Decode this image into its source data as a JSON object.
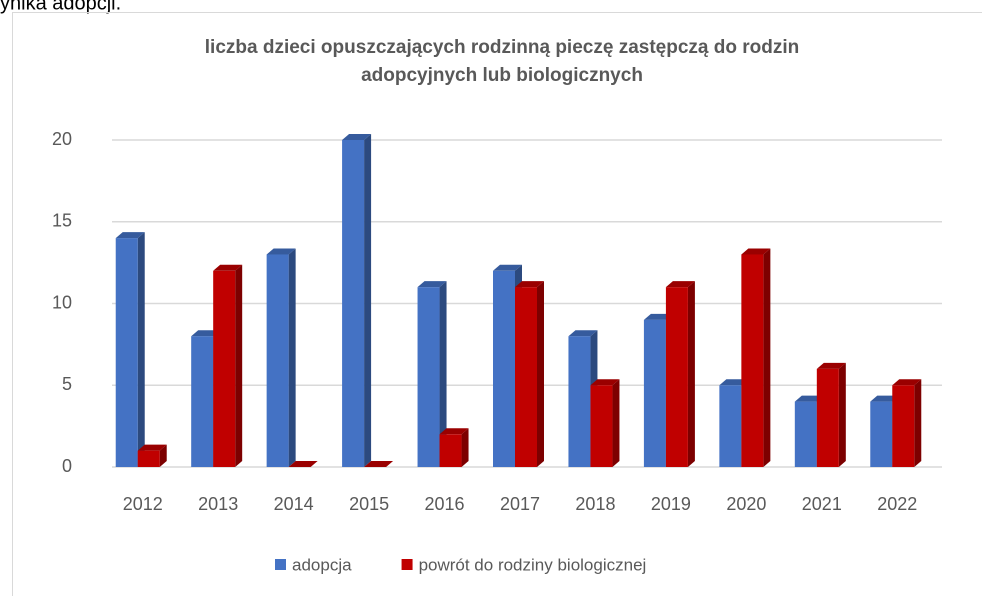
{
  "page_text": "ynika adopcji.",
  "chart_data": {
    "type": "bar3d",
    "title": [
      "liczba dzieci opuszczających rodzinną pieczę zastępczą do rodzin",
      "adopcyjnych lub biologicznych"
    ],
    "categories": [
      "2012",
      "2013",
      "2014",
      "2015",
      "2016",
      "2017",
      "2018",
      "2019",
      "2020",
      "2021",
      "2022"
    ],
    "series": [
      {
        "name": "adopcja",
        "color": "#4472c4",
        "values": [
          14,
          8,
          13,
          20,
          11,
          12,
          8,
          9,
          5,
          4,
          4
        ]
      },
      {
        "name": "powrót do rodziny biologicznej",
        "color": "#c00000",
        "values": [
          1,
          12,
          0,
          0,
          2,
          11,
          5,
          11,
          13,
          6,
          5
        ]
      }
    ],
    "ylim": [
      0,
      20
    ],
    "yticks": [
      0,
      5,
      10,
      15,
      20
    ],
    "grid": true,
    "legend": "bottom"
  }
}
